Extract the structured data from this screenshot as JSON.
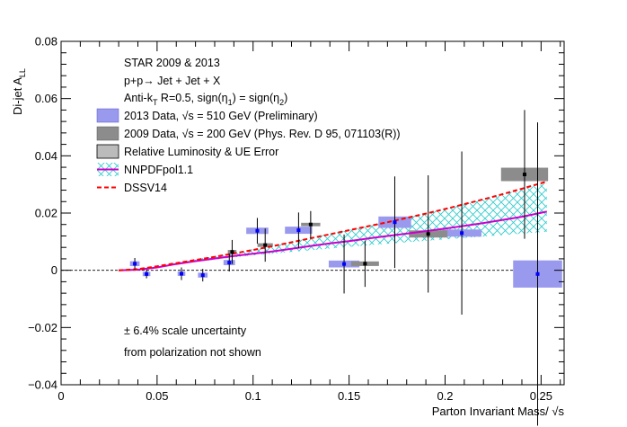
{
  "chart_data": {
    "type": "scatter",
    "title": "",
    "xlabel": "Parton Invariant Mass/ √s",
    "ylabel": "Di-jet A",
    "ylabel_sub": "LL",
    "xlim": [
      0,
      0.262
    ],
    "ylim": [
      -0.04,
      0.08
    ],
    "x_ticks": [
      0,
      0.05,
      0.1,
      0.15,
      0.2,
      0.25
    ],
    "x_tick_labels": [
      "0",
      "0.05",
      "0.1",
      "0.15",
      "0.2",
      "0.25"
    ],
    "y_ticks": [
      -0.04,
      -0.02,
      0,
      0.02,
      0.04,
      0.06,
      0.08
    ],
    "y_tick_labels": [
      "−0.04",
      "−0.02",
      "0",
      "0.02",
      "0.04",
      "0.06",
      "0.08"
    ],
    "header_lines": {
      "line1": "STAR 2009 & 2013",
      "line2": "p+p→ Jet + Jet + X",
      "line3_a": "Anti-k",
      "line3_sub": "T",
      "line3_b": " R=0.5, sign(η",
      "line3_sub1": "1",
      "line3_c": ") = sign(η",
      "line3_sub2": "2",
      "line3_d": ")"
    },
    "legend": {
      "data2013": "2013 Data, √s = 510 GeV (Preliminary)",
      "data2009": "2009 Data, √s = 200 GeV (Phys. Rev. D 95, 071103(R))",
      "sys": "Relative Luminosity & UE Error",
      "nnpdf": "NNPDFpol1.1",
      "dssv": "DSSV14"
    },
    "note": {
      "line1": "± 6.4% scale uncertainty",
      "line2": "from polarization not shown"
    },
    "colors": {
      "data2013_box": "#9999ee",
      "data2013_marker": "#0000ff",
      "data2009_box": "#8c8c8c",
      "data2009_marker": "#000000",
      "sys_box": "#bbbbbb",
      "nnpdf_line": "#cc00cc",
      "nnpdf_band": "#33cccc",
      "dssv_line": "#ff0000"
    },
    "series": [
      {
        "name": "2013 Data, √s = 510 GeV (Preliminary)",
        "points": [
          {
            "x": 0.0384,
            "y": 0.0023,
            "err": 0.002,
            "sys_w": 0.005,
            "sys_h": 0.0017
          },
          {
            "x": 0.0445,
            "y": -0.0013,
            "err": 0.0015,
            "sys_w": 0.004,
            "sys_h": 0.0015
          },
          {
            "x": 0.0627,
            "y": -0.0012,
            "err": 0.0022,
            "sys_w": 0.004,
            "sys_h": 0.0015
          },
          {
            "x": 0.0738,
            "y": -0.0017,
            "err": 0.0022,
            "sys_w": 0.005,
            "sys_h": 0.0017
          },
          {
            "x": 0.0876,
            "y": 0.0027,
            "err": 0.0031,
            "sys_w": 0.006,
            "sys_h": 0.0018
          },
          {
            "x": 0.1022,
            "y": 0.0138,
            "err": 0.0045,
            "sys_w": 0.0115,
            "sys_h": 0.0022
          },
          {
            "x": 0.1237,
            "y": 0.014,
            "err": 0.0062,
            "sys_w": 0.0142,
            "sys_h": 0.0025
          },
          {
            "x": 0.1474,
            "y": 0.0022,
            "err": 0.0103,
            "sys_w": 0.016,
            "sys_h": 0.0024
          },
          {
            "x": 0.1738,
            "y": 0.0168,
            "err": 0.016,
            "sys_w": 0.017,
            "sys_h": 0.004
          },
          {
            "x": 0.2087,
            "y": 0.013,
            "err": 0.0285,
            "sys_w": 0.0205,
            "sys_h": 0.0025
          },
          {
            "x": 0.2482,
            "y": -0.0013,
            "err": 0.053,
            "sys_w": 0.0255,
            "sys_h": 0.0095
          }
        ]
      },
      {
        "name": "2009 Data, √s = 200 GeV (Phys. Rev. D 95, 071103(R))",
        "points": [
          {
            "x": 0.0891,
            "y": 0.0064,
            "err": 0.0042,
            "sys_w": 0.0045,
            "sys_h": 0.0014
          },
          {
            "x": 0.1063,
            "y": 0.0088,
            "err": 0.0058,
            "sys_w": 0.008,
            "sys_h": 0.0013
          },
          {
            "x": 0.13,
            "y": 0.016,
            "err": 0.0047,
            "sys_w": 0.01,
            "sys_h": 0.0012
          },
          {
            "x": 0.1583,
            "y": 0.0023,
            "err": 0.0081,
            "sys_w": 0.0145,
            "sys_h": 0.0016
          },
          {
            "x": 0.1912,
            "y": 0.0127,
            "err": 0.0205,
            "sys_w": 0.02,
            "sys_h": 0.0025
          },
          {
            "x": 0.2414,
            "y": 0.0335,
            "err": 0.0225,
            "sys_w": 0.0245,
            "sys_h": 0.0047
          }
        ]
      }
    ],
    "nnpdf": {
      "name": "NNPDFpol1.1",
      "x": [
        0.03,
        0.04,
        0.05,
        0.06,
        0.07,
        0.08,
        0.09,
        0.1,
        0.11,
        0.12,
        0.13,
        0.14,
        0.15,
        0.16,
        0.17,
        0.18,
        0.19,
        0.2,
        0.21,
        0.22,
        0.23,
        0.24,
        0.253
      ],
      "y": [
        0.0,
        0.0002,
        0.001,
        0.0022,
        0.0032,
        0.0041,
        0.005,
        0.0058,
        0.0066,
        0.0075,
        0.0085,
        0.0094,
        0.0102,
        0.0111,
        0.012,
        0.0128,
        0.0137,
        0.0146,
        0.0155,
        0.0165,
        0.0176,
        0.0187,
        0.0205
      ],
      "lo": [
        0.0,
        0.0002,
        0.001,
        0.002,
        0.0029,
        0.0037,
        0.0045,
        0.0052,
        0.0058,
        0.0064,
        0.007,
        0.0076,
        0.0082,
        0.0088,
        0.0093,
        0.0098,
        0.0103,
        0.0108,
        0.0113,
        0.0118,
        0.0123,
        0.0128,
        0.0135
      ],
      "hi": [
        0.0,
        0.0003,
        0.0012,
        0.0026,
        0.0038,
        0.005,
        0.0062,
        0.0074,
        0.0088,
        0.01,
        0.0114,
        0.0128,
        0.0141,
        0.0155,
        0.017,
        0.0185,
        0.02,
        0.0215,
        0.0231,
        0.0248,
        0.0265,
        0.0283,
        0.0305
      ]
    },
    "dssv": {
      "name": "DSSV14",
      "x": [
        0.03,
        0.04,
        0.05,
        0.06,
        0.07,
        0.08,
        0.09,
        0.1,
        0.11,
        0.12,
        0.13,
        0.14,
        0.15,
        0.16,
        0.17,
        0.18,
        0.19,
        0.2,
        0.21,
        0.22,
        0.23,
        0.24,
        0.253
      ],
      "y": [
        0.0,
        0.0004,
        0.0014,
        0.0025,
        0.0036,
        0.0047,
        0.0059,
        0.0071,
        0.0084,
        0.0098,
        0.0112,
        0.0126,
        0.014,
        0.0154,
        0.0168,
        0.0183,
        0.0198,
        0.0214,
        0.0231,
        0.0248,
        0.0266,
        0.0285,
        0.031
      ]
    }
  }
}
